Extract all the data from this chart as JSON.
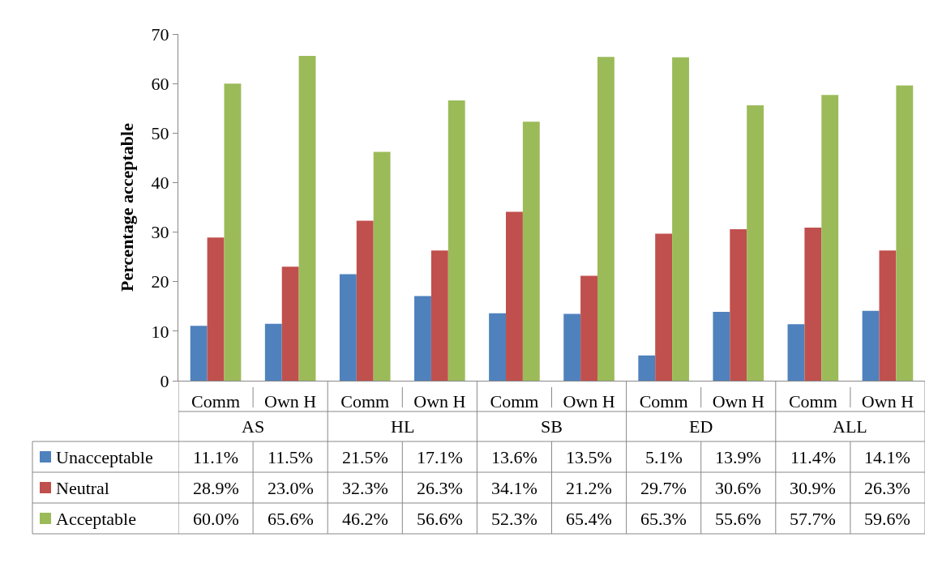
{
  "chart_data": {
    "type": "bar",
    "ylabel": "Percentage acceptable",
    "categories": [
      "Comm",
      "Own H",
      "Comm",
      "Own H",
      "Comm",
      "Own H",
      "Comm",
      "Own H",
      "Comm",
      "Own H"
    ],
    "annotations": [
      "AS",
      "HL",
      "SB",
      "ED",
      "ALL"
    ],
    "series": [
      {
        "name": "Unacceptable",
        "color": "#4f81bd",
        "values": [
          11.1,
          11.5,
          21.5,
          17.1,
          13.6,
          13.5,
          5.1,
          13.9,
          11.4,
          14.1
        ],
        "value_labels": [
          "11.1%",
          "11.5%",
          "21.5%",
          "17.1%",
          "13.6%",
          "13.5%",
          "5.1%",
          "13.9%",
          "11.4%",
          "14.1%"
        ]
      },
      {
        "name": "Neutral",
        "color": "#c0504d",
        "values": [
          28.9,
          23.0,
          32.3,
          26.3,
          34.1,
          21.2,
          29.7,
          30.6,
          30.9,
          26.3
        ],
        "value_labels": [
          "28.9%",
          "23.0%",
          "32.3%",
          "26.3%",
          "34.1%",
          "21.2%",
          "29.7%",
          "30.6%",
          "30.9%",
          "26.3%"
        ]
      },
      {
        "name": "Acceptable",
        "color": "#9bbb59",
        "values": [
          60.0,
          65.6,
          46.2,
          56.6,
          52.3,
          65.4,
          65.3,
          55.6,
          57.7,
          59.6
        ],
        "value_labels": [
          "60.0%",
          "65.6%",
          "46.2%",
          "56.6%",
          "52.3%",
          "65.4%",
          "65.3%",
          "55.6%",
          "57.7%",
          "59.6%"
        ]
      }
    ],
    "ylim": [
      0,
      70
    ],
    "yticks": [
      0,
      10,
      20,
      30,
      40,
      50,
      60,
      70
    ],
    "grid": false,
    "legend": "bottom left"
  }
}
